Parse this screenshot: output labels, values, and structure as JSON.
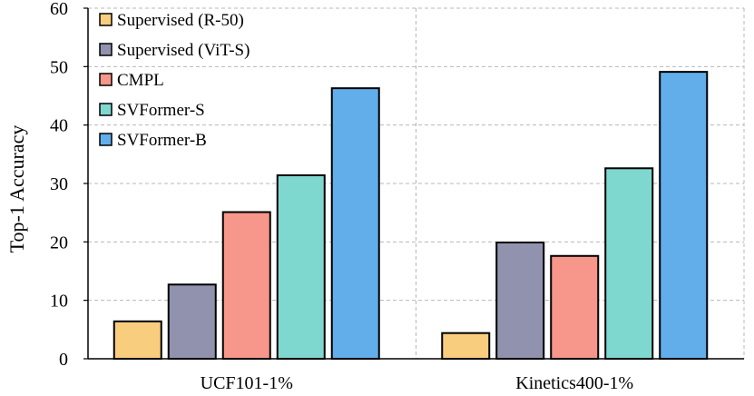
{
  "chart_data": {
    "type": "bar",
    "title": "",
    "xlabel": "",
    "ylabel": "Top-1 Accuracy",
    "ylim": [
      0,
      60
    ],
    "yticks": [
      0,
      10,
      20,
      30,
      40,
      50,
      60
    ],
    "grid": true,
    "legend_position": "top-left",
    "categories": [
      "UCF101-1%",
      "Kinetics400-1%"
    ],
    "series": [
      {
        "name": "Supervised (R-50)",
        "color": "#f9cd7e",
        "values": [
          6.4,
          4.4
        ]
      },
      {
        "name": "Supervised (ViT-S)",
        "color": "#9192ad",
        "values": [
          12.7,
          19.9
        ]
      },
      {
        "name": "CMPL",
        "color": "#f7968a",
        "values": [
          25.1,
          17.6
        ]
      },
      {
        "name": "SVFormer-S",
        "color": "#7fd8cf",
        "values": [
          31.4,
          32.6
        ]
      },
      {
        "name": "SVFormer-B",
        "color": "#61aeea",
        "values": [
          46.3,
          49.1
        ]
      }
    ]
  }
}
